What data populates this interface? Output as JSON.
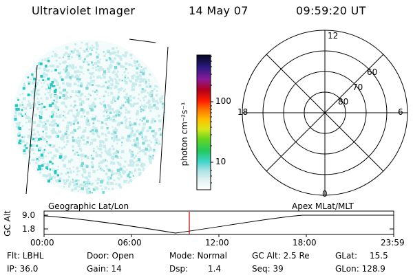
{
  "header": {
    "instrument": "Ultraviolet Imager",
    "date": "14 May 07",
    "time": "09:59:20 UT"
  },
  "colorbar": {
    "label": "photon cm⁻²s⁻¹",
    "ticks": [
      "100",
      "10"
    ]
  },
  "polar": {
    "mlt_labels": {
      "top": "12",
      "left": "18",
      "right": "6",
      "bottom": "0"
    },
    "lat_labels": [
      "60",
      "70",
      "80"
    ]
  },
  "timeline": {
    "left_title": "Geographic Lat/Lon",
    "right_title": "Apex  MLat/MLT",
    "y_title": "GC Alt",
    "y_ticks": [
      "9.0",
      "1.8"
    ],
    "x_ticks": [
      "00:00",
      "06:00",
      "12:00",
      "18:00",
      "23:59"
    ],
    "marker_time": "09:59:20"
  },
  "info": {
    "flt": "Flt: LBHL",
    "ip": "IP: 36.0",
    "door": "Door: Open",
    "gain": "Gain: 14",
    "mode": "Mode: Normal",
    "dsp_label": "Dsp:",
    "dsp_value": "1.4",
    "gcalt": "GC Alt: 2.5 Re",
    "seq": "Seq: 39",
    "glat_label": "GLat:",
    "glat_value": "15.5",
    "glon": "GLon: 128.9"
  },
  "colors": {
    "marker": "#cc0000",
    "speckle_light": "#c8ecec",
    "speckle_mid": "#7fd8d8",
    "speckle_strong": "#26c9c2"
  }
}
